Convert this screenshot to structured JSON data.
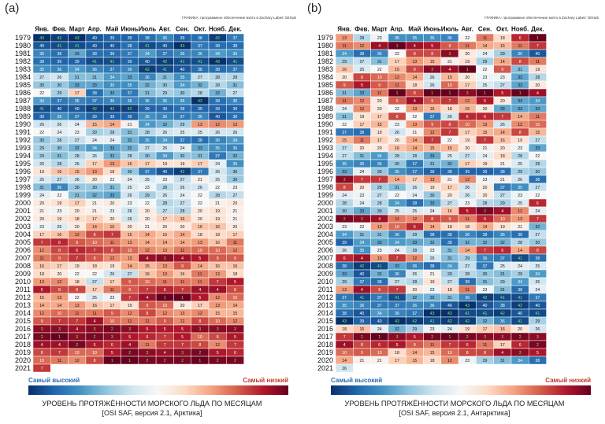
{
  "panels": [
    {
      "letter": "(a)",
      "credit": "ГРАФИКА: программное обеспечение взято в Zachary Labes' GitHub",
      "legend_high": "Самый высокий",
      "legend_low": "Самый низкий",
      "title": "УРОВЕНЬ ПРОТЯЖЁННОСТИ МОРСКОГО ЛЬДА ПО МЕСЯЦАМ",
      "subtitle": "[OSI SAF, версия 2.1, Арктика]"
    },
    {
      "letter": "(b)",
      "credit": "ГРАФИКА: программное обеспечение взято в Zachary Labes' GitHub",
      "legend_high": "Самый высокий",
      "legend_low": "Самый низкий",
      "title": "УРОВЕНЬ ПРОТЯЖЁННОСТИ МОРСКОГО ЛЬДА ПО МЕСЯЦАМ",
      "subtitle": "[OSI SAF, версия 2.1, Антарктика]"
    }
  ],
  "chart_data": [
    {
      "type": "heatmap",
      "months": [
        "Янв.",
        "Фев.",
        "Март",
        "Апр.",
        "Май",
        "Июнь",
        "Июль",
        "Авг.",
        "Сен.",
        "Окт.",
        "Нояб.",
        "Дек."
      ],
      "years": [
        "1979",
        "1980",
        "1981",
        "1982",
        "1983",
        "1984",
        "1985",
        "1986",
        "1987",
        "1988",
        "1989",
        "1990",
        "1991",
        "1992",
        "1993",
        "1994",
        "1995",
        "1996",
        "1997",
        "1998",
        "1999",
        "2000",
        "2001",
        "2002",
        "2003",
        "2004",
        "2005",
        "2006",
        "2007",
        "2008",
        "2009",
        "2010",
        "2011",
        "2012",
        "2013",
        "2014",
        "2015",
        "2016",
        "2017",
        "2018",
        "2019",
        "2020",
        "2021"
      ],
      "max_rank": 43,
      "ranks": [
        [
          43,
          42,
          43,
          40,
          39,
          39,
          38,
          36,
          39,
          38,
          42,
          37
        ],
        [
          40,
          41,
          41,
          40,
          40,
          38,
          41,
          40,
          43,
          37,
          38,
          38
        ],
        [
          36,
          38,
          33,
          38,
          38,
          37,
          34,
          37,
          36,
          36,
          34,
          35
        ],
        [
          38,
          39,
          39,
          41,
          41,
          39,
          40,
          42,
          41,
          41,
          43,
          41
        ],
        [
          35,
          36,
          34,
          36,
          37,
          36,
          42,
          41,
          40,
          38,
          38,
          37
        ],
        [
          27,
          26,
          31,
          31,
          34,
          33,
          36,
          31,
          35,
          27,
          28,
          28
        ],
        [
          30,
          30,
          33,
          33,
          35,
          35,
          32,
          30,
          34,
          32,
          28,
          31
        ],
        [
          22,
          29,
          17,
          38,
          33,
          37,
          31,
          29,
          30,
          28,
          32,
          27
        ],
        [
          34,
          37,
          36,
          37,
          36,
          36,
          36,
          35,
          35,
          43,
          38,
          36
        ],
        [
          41,
          40,
          40,
          42,
          42,
          42,
          39,
          39,
          38,
          39,
          39,
          39
        ],
        [
          39,
          35,
          37,
          39,
          39,
          39,
          35,
          36,
          37,
          36,
          40,
          38
        ],
        [
          26,
          26,
          24,
          15,
          14,
          21,
          34,
          32,
          29,
          13,
          12,
          13
        ],
        [
          22,
          24,
          23,
          29,
          28,
          31,
          28,
          26,
          25,
          25,
          26,
          26
        ],
        [
          30,
          28,
          27,
          24,
          24,
          32,
          35,
          34,
          37,
          38,
          36,
          34
        ],
        [
          29,
          30,
          32,
          34,
          33,
          32,
          27,
          26,
          24,
          33,
          35,
          36
        ],
        [
          29,
          31,
          28,
          26,
          32,
          28,
          30,
          34,
          30,
          31,
          37,
          32
        ],
        [
          26,
          28,
          26,
          17,
          13,
          16,
          17,
          19,
          19,
          17,
          24,
          35
        ],
        [
          19,
          16,
          15,
          13,
          18,
          30,
          37,
          40,
          42,
          37,
          26,
          30
        ],
        [
          25,
          27,
          26,
          20,
          22,
          24,
          25,
          23,
          27,
          21,
          25,
          30
        ],
        [
          31,
          36,
          30,
          30,
          31,
          25,
          23,
          28,
          26,
          26,
          22,
          23
        ],
        [
          24,
          22,
          31,
          32,
          33,
          26,
          29,
          26,
          24,
          22,
          28,
          27
        ],
        [
          20,
          19,
          17,
          21,
          20,
          23,
          22,
          28,
          27,
          22,
          21,
          20
        ],
        [
          21,
          23,
          20,
          21,
          23,
          26,
          20,
          27,
          28,
          20,
          19,
          21
        ],
        [
          20,
          19,
          18,
          17,
          20,
          26,
          20,
          17,
          16,
          20,
          19,
          21
        ],
        [
          23,
          25,
          20,
          14,
          15,
          20,
          21,
          20,
          20,
          16,
          16,
          20
        ],
        [
          17,
          16,
          12,
          8,
          7,
          15,
          14,
          16,
          14,
          18,
          18,
          17
        ],
        [
          7,
          6,
          9,
          10,
          11,
          13,
          14,
          14,
          14,
          13,
          16,
          11
        ],
        [
          12,
          8,
          6,
          7,
          8,
          10,
          12,
          13,
          11,
          10,
          10,
          12
        ],
        [
          11,
          9,
          7,
          9,
          12,
          13,
          4,
          3,
          4,
          5,
          9,
          9
        ],
        [
          16,
          17,
          19,
          18,
          19,
          14,
          15,
          13,
          9,
          14,
          16,
          16
        ],
        [
          18,
          20,
          22,
          22,
          26,
          27,
          16,
          13,
          16,
          11,
          13,
          18
        ],
        [
          13,
          12,
          18,
          27,
          17,
          9,
          10,
          11,
          11,
          11,
          7,
          5
        ],
        [
          5,
          8,
          8,
          17,
          11,
          9,
          7,
          6,
          7,
          4,
          4,
          8
        ],
        [
          15,
          13,
          22,
          25,
          23,
          7,
          4,
          1,
          1,
          5,
          12,
          10
        ],
        [
          14,
          14,
          13,
          16,
          17,
          19,
          9,
          10,
          20,
          17,
          13,
          14
        ],
        [
          12,
          10,
          11,
          11,
          9,
          12,
          8,
          12,
          13,
          12,
          15,
          15
        ],
        [
          9,
          7,
          7,
          4,
          10,
          11,
          11,
          9,
          12,
          8,
          10,
          12
        ],
        [
          3,
          3,
          4,
          3,
          2,
          3,
          5,
          5,
          5,
          3,
          3,
          3
        ],
        [
          2,
          1,
          3,
          2,
          3,
          5,
          6,
          7,
          5,
          10,
          8,
          5
        ],
        [
          4,
          4,
          2,
          5,
          6,
          4,
          11,
          7,
          7,
          8,
          12,
          7
        ],
        [
          8,
          7,
          10,
          10,
          5,
          2,
          3,
          4,
          3,
          2,
          5,
          6
        ],
        [
          10,
          11,
          12,
          8,
          1,
          1,
          2,
          2,
          2,
          1,
          2,
          2
        ],
        [
          7
        ]
      ]
    },
    {
      "type": "heatmap",
      "months": [
        "Янв.",
        "Фев.",
        "Март",
        "Апр.",
        "Май",
        "Июнь",
        "Июль",
        "Авг.",
        "Сен.",
        "Окт.",
        "Нояб.",
        "Дек."
      ],
      "years": [
        "1979",
        "1980",
        "1981",
        "1982",
        "1983",
        "1984",
        "1985",
        "1986",
        "1987",
        "1988",
        "1989",
        "1990",
        "1991",
        "1992",
        "1993",
        "1994",
        "1995",
        "1996",
        "1997",
        "1998",
        "1999",
        "2000",
        "2001",
        "2002",
        "2003",
        "2004",
        "2005",
        "2006",
        "2007",
        "2008",
        "2009",
        "2010",
        "2011",
        "2012",
        "2013",
        "2014",
        "2015",
        "2016",
        "2017",
        "2018",
        "2019",
        "2020",
        "2021"
      ],
      "max_rank": 43,
      "ranks": [
        [
          13,
          28,
          23,
          35,
          35,
          35,
          36,
          22,
          11,
          18,
          6,
          1
        ],
        [
          11,
          12,
          4,
          1,
          4,
          5,
          9,
          11,
          14,
          15,
          11,
          7
        ],
        [
          34,
          38,
          36,
          22,
          8,
          8,
          3,
          20,
          24,
          29,
          36,
          40
        ],
        [
          29,
          27,
          31,
          17,
          13,
          15,
          21,
          19,
          29,
          14,
          8,
          11
        ],
        [
          16,
          25,
          22,
          15,
          8,
          3,
          4,
          1,
          22,
          9,
          31,
          19
        ],
        [
          20,
          8,
          10,
          12,
          14,
          26,
          15,
          20,
          23,
          23,
          33,
          28
        ],
        [
          9,
          5,
          9,
          11,
          18,
          26,
          10,
          17,
          25,
          27,
          33,
          20
        ],
        [
          31,
          33,
          11,
          1,
          8,
          1,
          1,
          3,
          1,
          5,
          1,
          4
        ],
        [
          11,
          12,
          20,
          9,
          4,
          9,
          7,
          12,
          5,
          20,
          33,
          34
        ],
        [
          24,
          12,
          20,
          22,
          13,
          15,
          18,
          15,
          20,
          33,
          33,
          33
        ],
        [
          31,
          19,
          17,
          8,
          22,
          37,
          26,
          6,
          6,
          7,
          14,
          11
        ],
        [
          22,
          17,
          15,
          23,
          13,
          9,
          8,
          10,
          13,
          26,
          12,
          10
        ],
        [
          37,
          38,
          19,
          26,
          21,
          12,
          7,
          17,
          15,
          14,
          8,
          15
        ],
        [
          15,
          11,
          17,
          20,
          14,
          7,
          22,
          19,
          7,
          16,
          19,
          27
        ],
        [
          27,
          20,
          20,
          16,
          14,
          15,
          15,
          20,
          21,
          20,
          23,
          33
        ],
        [
          27,
          31,
          34,
          28,
          28,
          33,
          25,
          27,
          24,
          18,
          28,
          22
        ],
        [
          35,
          36,
          36,
          30,
          37,
          31,
          32,
          17,
          19,
          21,
          25,
          28
        ],
        [
          33,
          24,
          30,
          35,
          37,
          39,
          38,
          39,
          39,
          38,
          29,
          30
        ],
        [
          3,
          7,
          7,
          14,
          17,
          13,
          21,
          12,
          23,
          21,
          26,
          38
        ],
        [
          8,
          20,
          29,
          31,
          26,
          19,
          17,
          26,
          20,
          37,
          35,
          27
        ],
        [
          24,
          23,
          27,
          22,
          24,
          30,
          20,
          26,
          20,
          27,
          23,
          22
        ],
        [
          28,
          24,
          28,
          34,
          38,
          33,
          27,
          23,
          28,
          29,
          25,
          6
        ],
        [
          30,
          33,
          30,
          25,
          25,
          24,
          16,
          5,
          2,
          4,
          12,
          24
        ],
        [
          2,
          3,
          4,
          11,
          12,
          8,
          9,
          11,
          6,
          10,
          13,
          7
        ],
        [
          23,
          22,
          13,
          10,
          6,
          14,
          18,
          18,
          14,
          19,
          21,
          32
        ],
        [
          34,
          31,
          31,
          36,
          29,
          38,
          38,
          36,
          38,
          36,
          38,
          27
        ],
        [
          39,
          34,
          33,
          34,
          33,
          32,
          38,
          32,
          32,
          32,
          28,
          30
        ],
        [
          26,
          35,
          23,
          24,
          28,
          23,
          31,
          14,
          7,
          6,
          14,
          8
        ],
        [
          6,
          4,
          13,
          7,
          12,
          26,
          31,
          29,
          36,
          37,
          41,
          38
        ],
        [
          38,
          42,
          41,
          33,
          36,
          38,
          34,
          27,
          37,
          25,
          24,
          25
        ],
        [
          33,
          40,
          32,
          36,
          26,
          21,
          29,
          28,
          30,
          31,
          29,
          34
        ],
        [
          29,
          37,
          38,
          27,
          28,
          19,
          27,
          38,
          31,
          29,
          34,
          26
        ],
        [
          13,
          4,
          8,
          7,
          20,
          23,
          18,
          11,
          23,
          31,
          38,
          24
        ],
        [
          37,
          41,
          37,
          41,
          32,
          32,
          31,
          36,
          42,
          41,
          41,
          37
        ],
        [
          35,
          36,
          37,
          37,
          36,
          36,
          40,
          43,
          40,
          38,
          42,
          40
        ],
        [
          38,
          40,
          34,
          36,
          37,
          43,
          43,
          41,
          41,
          42,
          40,
          41
        ],
        [
          43,
          39,
          40,
          43,
          42,
          41,
          42,
          42,
          32,
          36,
          41,
          29
        ],
        [
          18,
          16,
          24,
          32,
          29,
          23,
          24,
          19,
          17,
          16,
          20,
          26
        ],
        [
          7,
          2,
          1,
          3,
          5,
          2,
          1,
          2,
          3,
          3,
          2,
          3
        ],
        [
          4,
          8,
          6,
          5,
          9,
          11,
          7,
          6,
          11,
          17,
          6,
          2
        ],
        [
          10,
          9,
          10,
          18,
          14,
          15,
          10,
          8,
          8,
          4,
          3,
          5
        ],
        [
          14,
          21,
          21,
          17,
          15,
          18,
          12,
          23,
          29,
          31,
          34,
          38
        ],
        [
          26
        ]
      ]
    }
  ]
}
